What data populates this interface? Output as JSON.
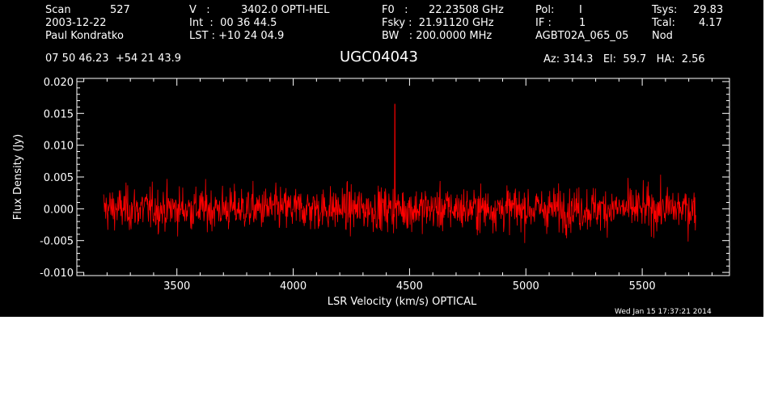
{
  "header": {
    "scan_label": "Scan",
    "scan_number": "527",
    "date": "2003-12-22",
    "observer": "Paul Kondratko",
    "v_label": "V   :",
    "v_value": "3402.0 OPTI-HEL",
    "int_line": "Int  :  00 36 44.5",
    "lst_line": "LST : +10 24 04.9",
    "f0_label": "F0   :",
    "f0_value": "22.23508 GHz",
    "fsky_line": "Fsky :  21.91120 GHz",
    "bw_line": "BW   : 200.0000 MHz",
    "pol_label": "Pol:",
    "pol_value": "I",
    "if_label": "IF :",
    "if_value": "1",
    "project": "AGBT02A_065_05",
    "tsys_label": "Tsys:",
    "tsys_value": "29.83",
    "tcal_label": "Tcal:",
    "tcal_value": "4.17",
    "mode": "Nod",
    "coords": "07 50 46.23  +54 21 43.9",
    "source_name": "UGC04043",
    "az_line": "Az: 314.3   El:  59.7   HA:  2.56"
  },
  "timestamp": "Wed Jan 15 17:37:21 2014",
  "chart_data": {
    "type": "line",
    "title": "UGC04043",
    "xlabel": "LSR Velocity (km/s) OPTICAL",
    "ylabel": "Flux Density (Jy)",
    "xlim": [
      3070,
      5875
    ],
    "ylim": [
      -0.0105,
      0.0205
    ],
    "x_ticks": [
      3500,
      4000,
      4500,
      5000,
      5500
    ],
    "x_tick_labels": [
      "3500",
      "4000",
      "4500",
      "5000",
      "5500"
    ],
    "y_ticks": [
      -0.01,
      -0.005,
      0.0,
      0.005,
      0.01,
      0.015,
      0.02
    ],
    "y_tick_labels": [
      "-0.010",
      "-0.005",
      "0.000",
      "0.005",
      "0.010",
      "0.015",
      "0.020"
    ],
    "grid": false,
    "series": [
      {
        "color": "#ff0000",
        "x_range": [
          3185,
          5730
        ],
        "noise_rms": 0.0017,
        "noise_peak_to_peak": [
          -0.006,
          0.006
        ],
        "points": [
          {
            "x": 3185,
            "y": 0.004
          },
          {
            "x": 3250,
            "y": -0.003
          },
          {
            "x": 3400,
            "y": 0.005
          },
          {
            "x": 3600,
            "y": -0.004
          },
          {
            "x": 3800,
            "y": 0.005
          },
          {
            "x": 4000,
            "y": -0.005
          },
          {
            "x": 4200,
            "y": 0.004
          },
          {
            "x": 4400,
            "y": -0.004
          },
          {
            "x": 4437,
            "y": 0.0165
          },
          {
            "x": 4600,
            "y": 0.004
          },
          {
            "x": 4800,
            "y": -0.005
          },
          {
            "x": 5000,
            "y": 0.005
          },
          {
            "x": 5200,
            "y": -0.006
          },
          {
            "x": 5400,
            "y": 0.006
          },
          {
            "x": 5600,
            "y": -0.005
          },
          {
            "x": 5730,
            "y": 0.001
          }
        ]
      }
    ]
  }
}
